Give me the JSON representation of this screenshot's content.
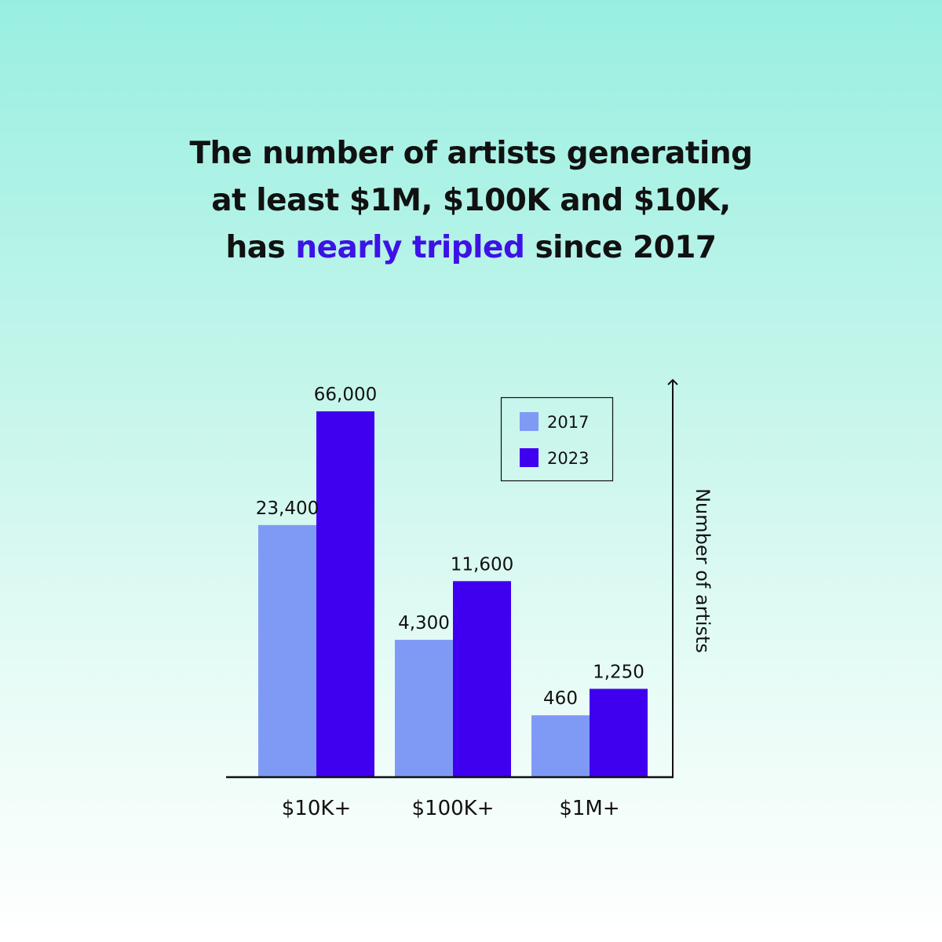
{
  "title": {
    "line1": "The number of artists generating",
    "line2": "at least $1M, $100K and $10K,",
    "line3_prefix": "has ",
    "line3_highlight": "nearly tripled",
    "line3_suffix": " since 2017"
  },
  "colors": {
    "highlight": "#3d12e6",
    "series_2017": "#7f9af5",
    "series_2023": "#3f00f0",
    "text": "#111111"
  },
  "chart_data": {
    "type": "bar",
    "title": "The number of artists generating at least $1M, $100K and $10K, has nearly tripled since 2017",
    "categories": [
      "$10K+",
      "$100K+",
      "$1M+"
    ],
    "series": [
      {
        "name": "2017",
        "values": [
          23400,
          4300,
          460
        ],
        "labels": [
          "23,400",
          "4,300",
          "460"
        ]
      },
      {
        "name": "2023",
        "values": [
          66000,
          11600,
          1250
        ],
        "labels": [
          "66,000",
          "11,600",
          "1,250"
        ]
      }
    ],
    "xlabel": "",
    "ylabel": "Number of artists",
    "axis_scale": "non-linear (bars not proportional)",
    "legend_position": "top-right",
    "grid": false
  }
}
